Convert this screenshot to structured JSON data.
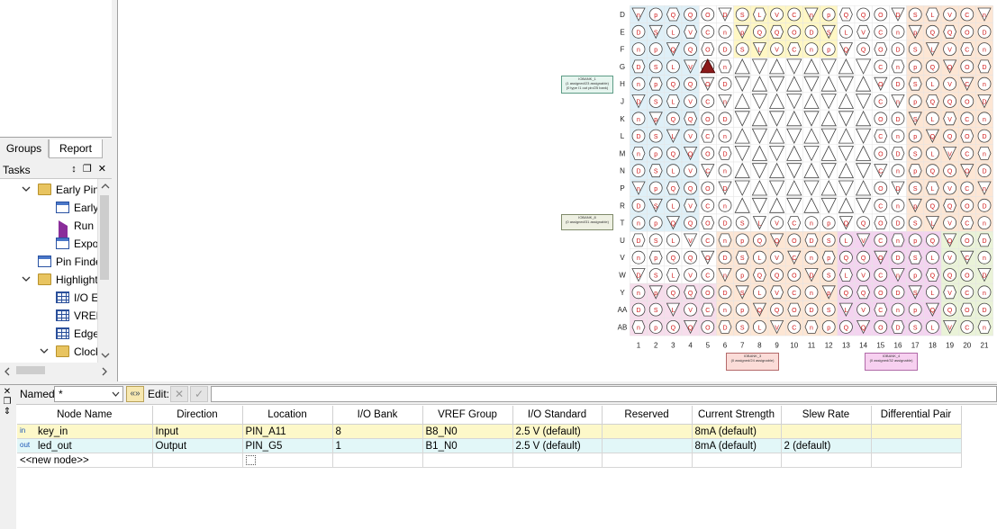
{
  "left_panel": {
    "tabs": [
      "Groups",
      "Report"
    ],
    "tasks_title": "Tasks",
    "tasks_controls": "↕ ❐ ✕",
    "tree": [
      {
        "label": "Early Pin",
        "icon": "folder-icon",
        "expanded": true
      },
      {
        "label": "Early",
        "icon": "window-icon"
      },
      {
        "label": "Run I",
        "icon": "run-icon"
      },
      {
        "label": "Expo",
        "icon": "window-icon"
      },
      {
        "label": "Pin Finde",
        "icon": "window-icon"
      },
      {
        "label": "Highlight",
        "icon": "folder-icon",
        "expanded": true
      },
      {
        "label": "I/O E",
        "icon": "table-icon"
      },
      {
        "label": "VREF",
        "icon": "table-icon"
      },
      {
        "label": "Edge",
        "icon": "table-icon"
      },
      {
        "label": "Clock",
        "icon": "folder-icon",
        "expanded": true
      }
    ]
  },
  "pin_planner": {
    "row_labels": [
      "D",
      "E",
      "F",
      "G",
      "H",
      "J",
      "K",
      "L",
      "M",
      "N",
      "P",
      "R",
      "T",
      "U",
      "V",
      "W",
      "Y",
      "AA",
      "AB"
    ],
    "col_labels": [
      "1",
      "2",
      "3",
      "4",
      "5",
      "6",
      "7",
      "8",
      "9",
      "10",
      "11",
      "12",
      "13",
      "14",
      "15",
      "16",
      "17",
      "18",
      "19",
      "20",
      "21"
    ],
    "bank_boxes": [
      {
        "title": "IOBANK_1",
        "line1": "(1 assigned/23 assignable)",
        "line2": "(0 type I1 out pin/25 bank)"
      },
      {
        "title": "IOBANK_8",
        "line1": "(0 assigned/31 assignable)",
        "line2": ""
      },
      {
        "title": "IOBANK_3",
        "line1": "(0 assigned/24 assignable)",
        "line2": ""
      },
      {
        "title": "IOBANK_4",
        "line1": "(0 assigned/32 assignable)",
        "line2": ""
      }
    ],
    "colors": {
      "bank1": "#dff0f8",
      "bank2": "#fde6d4",
      "bank3": "#f7ddec",
      "bank4": "#f4d3f0",
      "bank5": "#eaf3d8",
      "bank6": "#fff7c4",
      "pin": "#d01818"
    }
  },
  "toolbar": {
    "named_label": "Named:",
    "named_value": "*",
    "expand_button": "«»",
    "edit_label": "Edit:",
    "edit_cancel": "✕",
    "edit_accept": "✓",
    "edit_value": ""
  },
  "side_controls": "✕\n❐\n↕",
  "table": {
    "columns": [
      "Node Name",
      "Direction",
      "Location",
      "I/O Bank",
      "VREF Group",
      "I/O Standard",
      "Reserved",
      "Current Strength",
      "Slew Rate",
      "Differential Pair"
    ],
    "rows": [
      {
        "icon": "in",
        "node_name": "key_in",
        "direction": "Input",
        "location": "PIN_A11",
        "io_bank": "8",
        "vref_group": "B8_N0",
        "io_standard": "2.5 V (default)",
        "reserved": "",
        "current_strength": "8mA (default)",
        "slew_rate": "",
        "differential_pair": ""
      },
      {
        "icon": "out",
        "node_name": "led_out",
        "direction": "Output",
        "location": "PIN_G5",
        "io_bank": "1",
        "vref_group": "B1_N0",
        "io_standard": "2.5 V (default)",
        "reserved": "",
        "current_strength": "8mA (default)",
        "slew_rate": "2 (default)",
        "differential_pair": ""
      }
    ],
    "new_node": "<<new node>>"
  }
}
